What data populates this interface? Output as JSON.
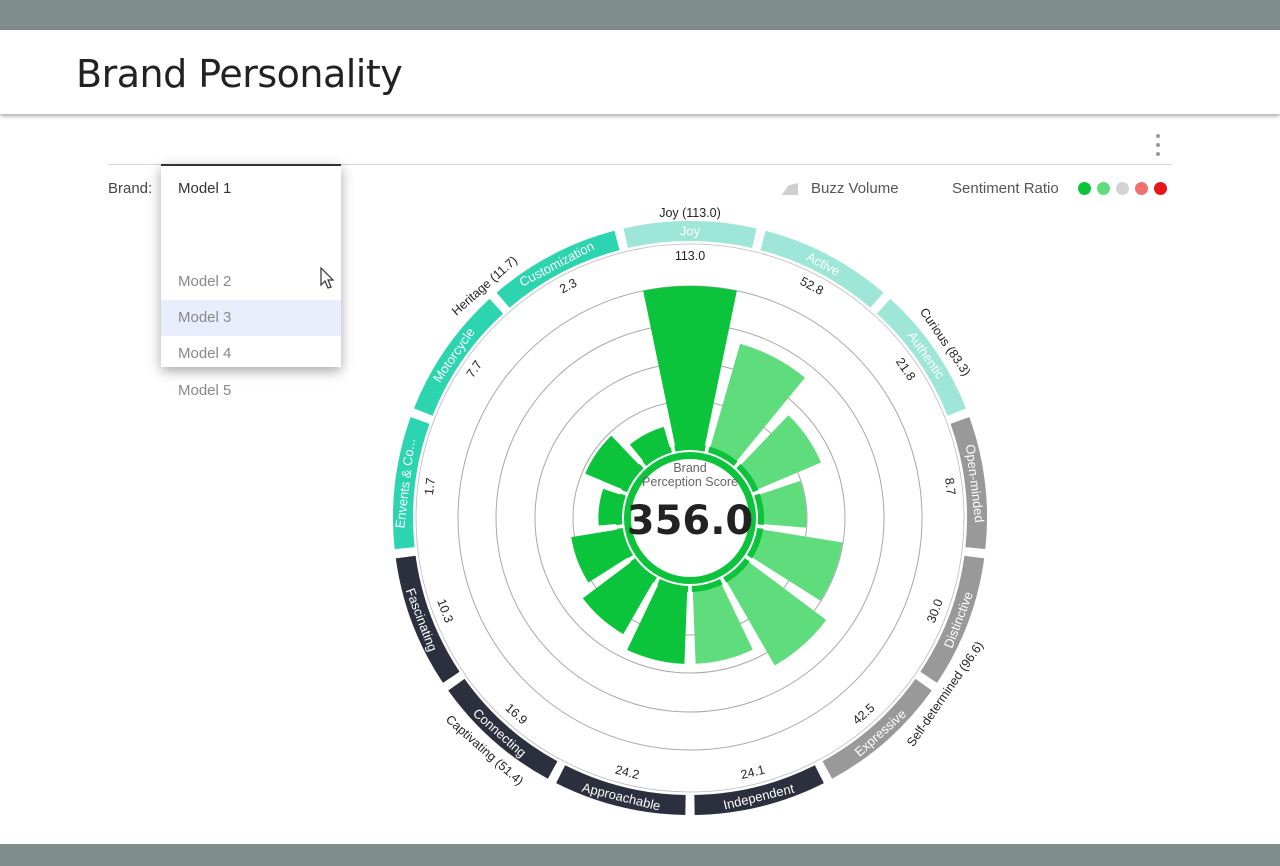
{
  "page": {
    "title": "Brand Personality"
  },
  "filter": {
    "label": "Brand:",
    "selected": "Model 1",
    "options": [
      "Model 2",
      "Model 3",
      "Model 4",
      "Model 5"
    ],
    "hovered_index": 1
  },
  "legend": {
    "buzz_label": "Buzz Volume",
    "sentiment_label": "Sentiment Ratio",
    "sentiment_colors": [
      "#0bc43c",
      "#5fdc7c",
      "#d3d3d3",
      "#f07070",
      "#e8141b"
    ]
  },
  "center": {
    "line1": "Brand",
    "line2": "Perception Score",
    "score": "356.0"
  },
  "chart_data": {
    "type": "radial-bar",
    "max_value": 113.0,
    "segments": [
      {
        "label": "Joy",
        "value": "113.0",
        "v": 113.0,
        "group": "light",
        "bar_color": "#0bc43c"
      },
      {
        "label": "Active",
        "value": "52.8",
        "v": 52.8,
        "group": "light",
        "bar_color": "#5fdc7c"
      },
      {
        "label": "Authentic",
        "value": "21.8",
        "v": 21.8,
        "group": "light",
        "bar_color": "#5fdc7c"
      },
      {
        "label": "Open-minded",
        "value": "8.7",
        "v": 8.7,
        "group": "gray",
        "bar_color": "#5fdc7c"
      },
      {
        "label": "Distinctive",
        "value": "30.0",
        "v": 30.0,
        "group": "gray",
        "bar_color": "#5fdc7c"
      },
      {
        "label": "Expressive",
        "value": "42.5",
        "v": 42.5,
        "group": "gray",
        "bar_color": "#5fdc7c"
      },
      {
        "label": "Independent",
        "value": "24.1",
        "v": 24.1,
        "group": "dark",
        "bar_color": "#5fdc7c"
      },
      {
        "label": "Approachable",
        "value": "24.2",
        "v": 24.2,
        "group": "dark",
        "bar_color": "#0bc43c"
      },
      {
        "label": "Connecting",
        "value": "16.9",
        "v": 16.9,
        "group": "dark",
        "bar_color": "#0bc43c"
      },
      {
        "label": "Fascinating",
        "value": "10.3",
        "v": 10.3,
        "group": "dark",
        "bar_color": "#0bc43c"
      },
      {
        "label": "Envents & Co...",
        "value": "1.7",
        "v": 1.7,
        "group": "teal",
        "bar_color": "#0bc43c"
      },
      {
        "label": "Motorcycle",
        "value": "7.7",
        "v": 7.7,
        "group": "teal",
        "bar_color": "#0bc43c"
      },
      {
        "label": "Customization",
        "value": "2.3",
        "v": 2.3,
        "group": "teal",
        "bar_color": "#0bc43c"
      }
    ],
    "groups": [
      {
        "label": "Joy (113.0)",
        "color": "#9ee6d8"
      },
      {
        "label": "Curious (83.3)",
        "color": "#9ee6d8"
      },
      {
        "label": "Self-determined (96.6)",
        "color": "#999999"
      },
      {
        "label": "Captivating (51.4)",
        "color": "#2c2f3e"
      },
      {
        "label": "Heritage (11.7)",
        "color": "#2cd4b0"
      }
    ]
  }
}
